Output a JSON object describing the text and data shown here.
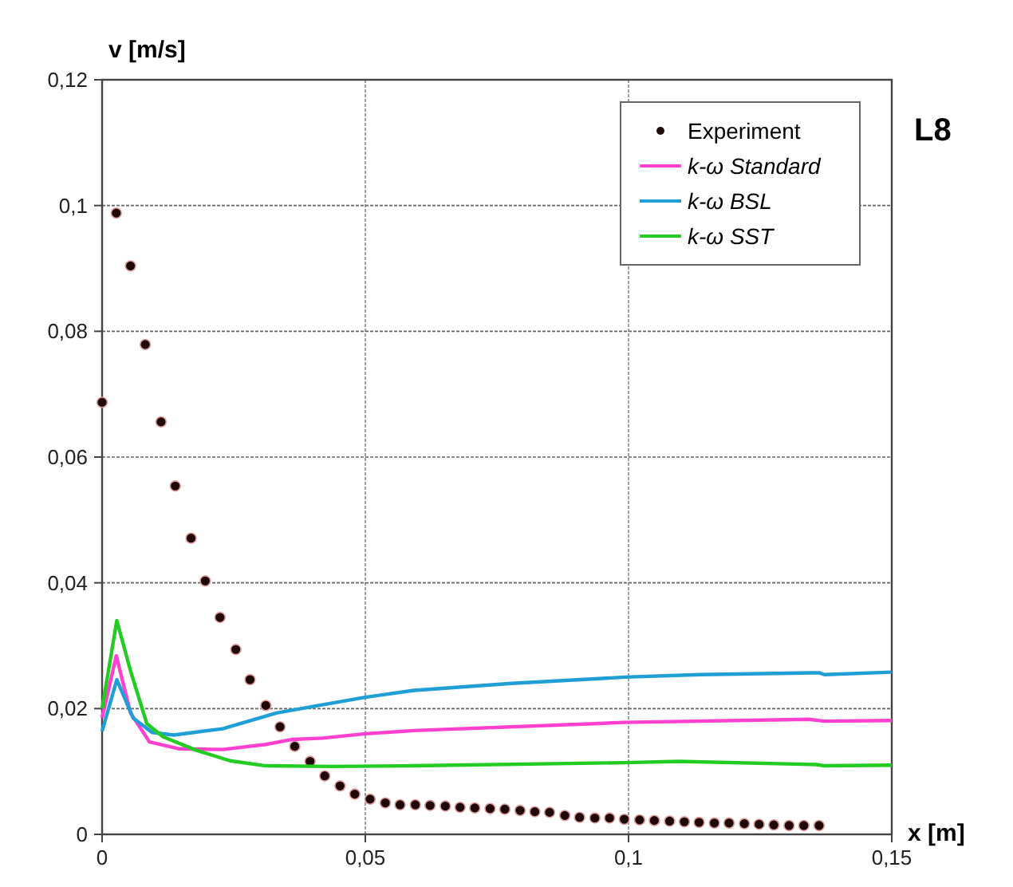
{
  "chart_data": {
    "type": "line",
    "title": "L8",
    "xlabel": "x [m]",
    "ylabel": "v [m/s]",
    "xlim": [
      0,
      0.15
    ],
    "ylim": [
      0,
      0.12
    ],
    "xticks": [
      0,
      {
        "value": 0.05,
        "label": "0,05"
      },
      {
        "value": 0.1,
        "label": "0,1"
      },
      {
        "value": 0.15,
        "label": "0,15"
      }
    ],
    "yticks": [
      0,
      {
        "value": 0.02,
        "label": "0,02"
      },
      {
        "value": 0.04,
        "label": "0,04"
      },
      {
        "value": 0.06,
        "label": "0,06"
      },
      {
        "value": 0.08,
        "label": "0,08"
      },
      {
        "value": 0.1,
        "label": "0,1"
      },
      {
        "value": 0.12,
        "label": "0,12"
      }
    ],
    "grid": true,
    "legend": "top right",
    "line_style": "solid",
    "series": [
      {
        "name": "Experiment",
        "type": "scatter",
        "marker": "circle",
        "color": "#200808",
        "x": [
          0,
          0.0027,
          0.0054,
          0.0082,
          0.0112,
          0.0139,
          0.0169,
          0.0196,
          0.0224,
          0.0254,
          0.0281,
          0.0311,
          0.0338,
          0.0366,
          0.0395,
          0.0423,
          0.0452,
          0.048,
          0.0509,
          0.0538,
          0.0566,
          0.0595,
          0.0623,
          0.0652,
          0.068,
          0.0708,
          0.0737,
          0.0765,
          0.0794,
          0.0822,
          0.085,
          0.0879,
          0.0907,
          0.0936,
          0.0964,
          0.0992,
          0.1021,
          0.1049,
          0.1078,
          0.1106,
          0.1134,
          0.1163,
          0.1191,
          0.122,
          0.1248,
          0.1276,
          0.1305,
          0.1333,
          0.1362
        ],
        "values": [
          0.0687,
          0.0988,
          0.0904,
          0.0779,
          0.0656,
          0.0554,
          0.0471,
          0.0403,
          0.0345,
          0.0294,
          0.0246,
          0.0205,
          0.0171,
          0.014,
          0.0116,
          0.0093,
          0.0077,
          0.0064,
          0.0056,
          0.005,
          0.0047,
          0.0047,
          0.0046,
          0.0045,
          0.0043,
          0.0042,
          0.0041,
          0.004,
          0.0038,
          0.0036,
          0.0035,
          0.003,
          0.0027,
          0.0026,
          0.0026,
          0.0024,
          0.0023,
          0.0022,
          0.0021,
          0.002,
          0.0019,
          0.0018,
          0.0018,
          0.0017,
          0.0016,
          0.0015,
          0.0014,
          0.0014,
          0.0014
        ]
      },
      {
        "name": "k-ω Standard",
        "color": "#ff40d0",
        "x": [
          0,
          0.0027,
          0.0054,
          0.009,
          0.0147,
          0.0229,
          0.0311,
          0.0362,
          0.0418,
          0.05,
          0.0593,
          0.0993,
          0.1342,
          0.1372,
          0.15
        ],
        "values": [
          0.0185,
          0.0284,
          0.0193,
          0.0147,
          0.0136,
          0.0135,
          0.0143,
          0.0151,
          0.0153,
          0.016,
          0.0165,
          0.0178,
          0.0183,
          0.018,
          0.0181
        ]
      },
      {
        "name": "k-ω BSL",
        "color": "#1f9fd6",
        "x": [
          0,
          0.0028,
          0.0059,
          0.0095,
          0.0136,
          0.0229,
          0.0331,
          0.0418,
          0.05,
          0.0593,
          0.0778,
          0.0993,
          0.1136,
          0.1362,
          0.1372,
          0.15
        ],
        "values": [
          0.0164,
          0.0246,
          0.0185,
          0.0162,
          0.0158,
          0.0168,
          0.0193,
          0.0206,
          0.0218,
          0.0229,
          0.024,
          0.025,
          0.0254,
          0.0257,
          0.0254,
          0.0258
        ]
      },
      {
        "name": "k-ω SST",
        "color": "#22cc22",
        "x": [
          0,
          0.0028,
          0.0054,
          0.0085,
          0.0116,
          0.0178,
          0.0243,
          0.0311,
          0.0434,
          0.059,
          0.0993,
          0.1095,
          0.1357,
          0.1372,
          0.15
        ],
        "values": [
          0.02,
          0.034,
          0.026,
          0.0176,
          0.0155,
          0.0134,
          0.0117,
          0.0109,
          0.0108,
          0.0109,
          0.0114,
          0.0116,
          0.0111,
          0.0109,
          0.011
        ]
      }
    ]
  }
}
